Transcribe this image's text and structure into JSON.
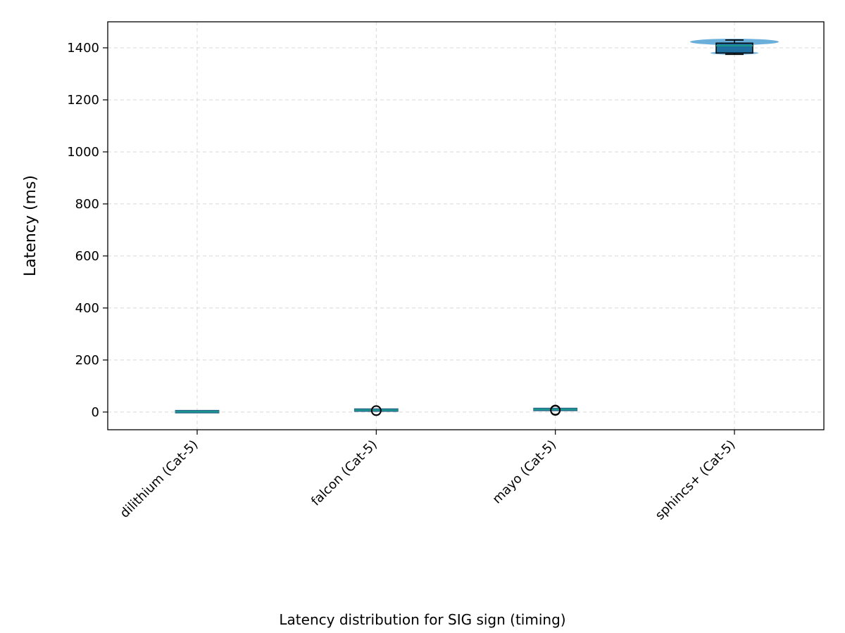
{
  "chart_data": {
    "type": "box",
    "ylabel": "Latency (ms)",
    "caption": "Latency distribution for SIG sign (timing)",
    "ylim": [
      -68,
      1500
    ],
    "yticks": [
      0,
      200,
      400,
      600,
      800,
      1000,
      1200,
      1400
    ],
    "grid": true,
    "categories": [
      "dilithium (Cat-5)",
      "falcon (Cat-5)",
      "mayo (Cat-5)",
      "sphincs+ (Cat-5)"
    ],
    "series": [
      {
        "category": "dilithium (Cat-5)",
        "min": 0.9,
        "q1": 1.2,
        "median": 1.5,
        "q3": 1.8,
        "max": 2.1,
        "outliers": []
      },
      {
        "category": "falcon (Cat-5)",
        "min": 6.5,
        "q1": 7,
        "median": 7.5,
        "q3": 8,
        "max": 8.5,
        "outliers": [
          5,
          6
        ]
      },
      {
        "category": "mayo (Cat-5)",
        "min": 8.5,
        "q1": 9,
        "median": 10,
        "q3": 11,
        "max": 11.5,
        "outliers": [
          6,
          8
        ]
      },
      {
        "category": "sphincs+ (Cat-5)",
        "min": 1375,
        "q1": 1380,
        "median": 1408,
        "q3": 1418,
        "max": 1430,
        "outliers": []
      }
    ],
    "colors": {
      "box_fill": "#1f6fa0",
      "median": "#1a9a8a",
      "violin": "#5aa5d6",
      "outlier_edge": "#000000"
    }
  }
}
